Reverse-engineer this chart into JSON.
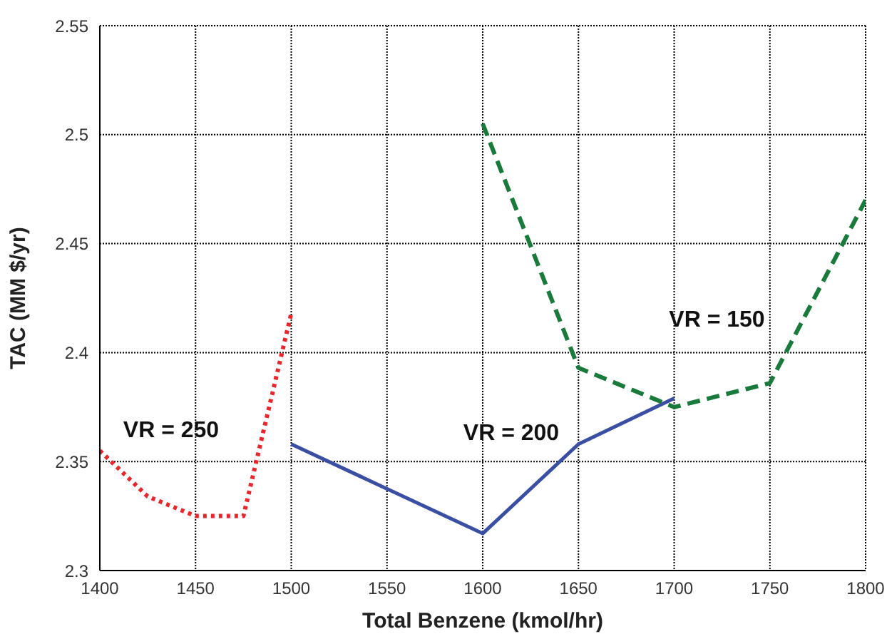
{
  "chart_data": {
    "type": "line",
    "xlabel": "Total Benzene (kmol/hr)",
    "ylabel": "TAC (MM $/yr)",
    "xlim": [
      1400,
      1800
    ],
    "xticks": [
      1400,
      1450,
      1500,
      1550,
      1600,
      1650,
      1700,
      1750,
      1800
    ],
    "ylim": [
      2.3,
      2.55
    ],
    "yticks": [
      2.3,
      2.35,
      2.4,
      2.45,
      2.5,
      2.55
    ],
    "grid": true,
    "legend": false,
    "marker": "none",
    "series": [
      {
        "name": "VR = 250",
        "x": [
          1400,
          1425,
          1450,
          1475,
          1500
        ],
        "values": [
          2.355,
          2.334,
          2.325,
          2.325,
          2.418
        ],
        "color": "#e8262b",
        "line_style": "dotted"
      },
      {
        "name": "VR = 200",
        "x": [
          1500,
          1600,
          1650,
          1700
        ],
        "values": [
          2.358,
          2.317,
          2.358,
          2.379
        ],
        "color": "#3a4fa3",
        "line_style": "solid"
      },
      {
        "name": "VR = 150",
        "x": [
          1600,
          1650,
          1700,
          1750,
          1800
        ],
        "values": [
          2.505,
          2.393,
          2.375,
          2.386,
          2.47
        ],
        "color": "#1a7a3c",
        "line_style": "dashed"
      }
    ]
  }
}
